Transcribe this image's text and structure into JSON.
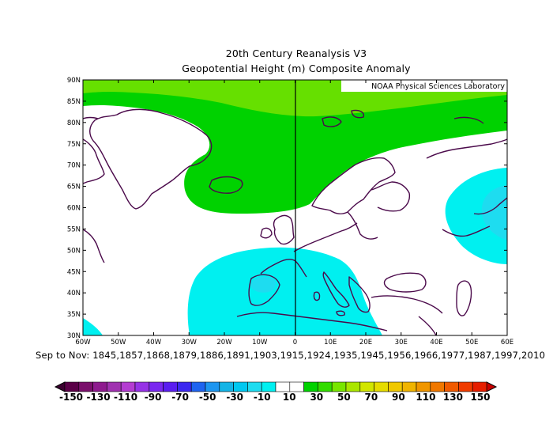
{
  "header": {
    "title": "20th Century Reanalysis V3",
    "subtitle": "Geopotential Height (m) Composite Anomaly"
  },
  "watermark": "NOAA Physical Sciences Laboratory",
  "axes": {
    "lat_labels": [
      "90N",
      "85N",
      "80N",
      "75N",
      "70N",
      "65N",
      "60N",
      "55N",
      "50N",
      "45N",
      "40N",
      "35N",
      "30N"
    ],
    "lon_labels": [
      "60W",
      "50W",
      "40W",
      "30W",
      "20W",
      "10W",
      "0",
      "10E",
      "20E",
      "30E",
      "40E",
      "50E",
      "60E"
    ]
  },
  "season_line": "Sep to Nov: 1845,1857,1868,1879,1886,1891,1903,1915,1924,1935,1945,1956,1966,1977,1987,1997,2010",
  "colorbar": {
    "labels": [
      "-150",
      "-130",
      "-110",
      "-90",
      "-70",
      "-50",
      "-30",
      "-10",
      "10",
      "30",
      "50",
      "70",
      "90",
      "110",
      "130",
      "150"
    ],
    "colors": [
      "#5a0047",
      "#7a0f6b",
      "#8e1a8e",
      "#a032b0",
      "#b43cd2",
      "#9632e6",
      "#7a28f0",
      "#5a1ef0",
      "#3c28f0",
      "#1e64f0",
      "#1e96f0",
      "#14b4e6",
      "#00c8f0",
      "#1edcf0",
      "#00f0f0",
      "#ffffff",
      "#ffffff",
      "#00d200",
      "#32dc00",
      "#78e600",
      "#aae600",
      "#d2e600",
      "#e6dc00",
      "#f0c800",
      "#f0b400",
      "#f09600",
      "#f07800",
      "#f05a00",
      "#f03c00",
      "#e61e00"
    ],
    "left_arrow_color": "#3c0030",
    "right_arrow_color": "#c80000"
  },
  "chart_data": {
    "type": "map",
    "projection": "lat-lon",
    "xlim": [
      -60,
      60
    ],
    "ylim": [
      30,
      90
    ],
    "field": "Geopotential Height Composite Anomaly",
    "units": "m",
    "anomaly_regions": [
      {
        "range": "10 to 30",
        "color": "#00d200",
        "area": "Arctic / Greenland Sea / Scandinavia"
      },
      {
        "range": "30 to 50",
        "color": "#66e000",
        "area": "Far north (85N-90N)"
      },
      {
        "range": "-30 to -10",
        "color": "#00f0f0",
        "area": "Western Mediterranean / Iberia"
      },
      {
        "range": "-30 to -10",
        "color": "#00f0f0",
        "area": "Western Russia (60E)"
      },
      {
        "range": "-50 to -30",
        "color": "#1edcf0",
        "area": "Core west of Russia"
      },
      {
        "range": "-30 to -10",
        "color": "#00f0f0",
        "area": "SW corner (60W, 30N)"
      }
    ],
    "colors": {
      "land_outline": "#4b0a4b",
      "meridian_line": "#000000"
    }
  }
}
